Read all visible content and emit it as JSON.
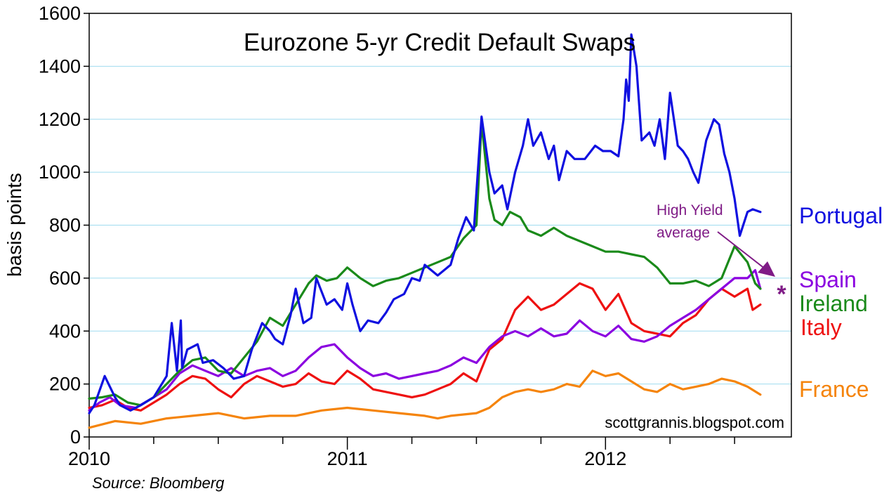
{
  "chart_data": {
    "type": "line",
    "title": "Eurozone 5-yr Credit Default Swaps",
    "ylabel": "basis points",
    "xlabel": "",
    "ylim": [
      0,
      1600
    ],
    "yticks": [
      0,
      200,
      400,
      600,
      800,
      1000,
      1200,
      1400,
      1600
    ],
    "xlim": [
      2010.0,
      2012.72
    ],
    "xticks": [
      2010,
      2011,
      2012
    ],
    "xtick_labels": [
      "2010",
      "2011",
      "2012"
    ],
    "grid": "horizontal",
    "legend": "direct labels at right end of each series",
    "annotation": {
      "text_line1": "High Yield",
      "text_line2": "average",
      "marker": "*",
      "value": 545
    },
    "credit": "scottgrannis.blogspot.com",
    "source": "Source: Bloomberg",
    "series": [
      {
        "name": "Portugal",
        "color": "#1010e0",
        "x": [
          2010.0,
          2010.02,
          2010.06,
          2010.1,
          2010.12,
          2010.16,
          2010.2,
          2010.25,
          2010.3,
          2010.32,
          2010.34,
          2010.355,
          2010.36,
          2010.38,
          2010.42,
          2010.44,
          2010.48,
          2010.52,
          2010.56,
          2010.6,
          2010.63,
          2010.67,
          2010.7,
          2010.72,
          2010.75,
          2010.78,
          2010.8,
          2010.83,
          2010.86,
          2010.88,
          2010.92,
          2010.95,
          2010.98,
          2011.0,
          2011.02,
          2011.05,
          2011.08,
          2011.12,
          2011.15,
          2011.18,
          2011.22,
          2011.25,
          2011.28,
          2011.3,
          2011.35,
          2011.4,
          2011.43,
          2011.46,
          2011.49,
          2011.52,
          2011.55,
          2011.57,
          2011.6,
          2011.62,
          2011.65,
          2011.68,
          2011.7,
          2011.72,
          2011.75,
          2011.78,
          2011.8,
          2011.82,
          2011.85,
          2011.88,
          2011.92,
          2011.96,
          2011.99,
          2012.02,
          2012.05,
          2012.07,
          2012.08,
          2012.09,
          2012.1,
          2012.12,
          2012.14,
          2012.17,
          2012.19,
          2012.21,
          2012.23,
          2012.25,
          2012.28,
          2012.3,
          2012.32,
          2012.34,
          2012.36,
          2012.39,
          2012.42,
          2012.44,
          2012.46,
          2012.48,
          2012.5,
          2012.52,
          2012.55,
          2012.57,
          2012.6
        ],
        "values": [
          90,
          120,
          230,
          150,
          120,
          100,
          120,
          150,
          230,
          430,
          250,
          440,
          260,
          330,
          350,
          280,
          290,
          260,
          220,
          230,
          330,
          430,
          400,
          370,
          350,
          460,
          560,
          430,
          450,
          600,
          500,
          520,
          480,
          580,
          500,
          400,
          440,
          430,
          470,
          520,
          540,
          600,
          590,
          650,
          610,
          650,
          750,
          830,
          780,
          1210,
          1000,
          920,
          950,
          860,
          1000,
          1100,
          1200,
          1100,
          1150,
          1050,
          1100,
          970,
          1080,
          1050,
          1050,
          1100,
          1080,
          1080,
          1060,
          1200,
          1350,
          1270,
          1520,
          1400,
          1120,
          1150,
          1100,
          1200,
          1050,
          1300,
          1100,
          1080,
          1050,
          1000,
          960,
          1120,
          1200,
          1180,
          1070,
          1000,
          900,
          760,
          850,
          860,
          850
        ]
      },
      {
        "name": "Spain",
        "color": "#8b00e0",
        "x": [
          2010.0,
          2010.04,
          2010.08,
          2010.12,
          2010.18,
          2010.25,
          2010.3,
          2010.35,
          2010.4,
          2010.45,
          2010.5,
          2010.55,
          2010.6,
          2010.65,
          2010.7,
          2010.75,
          2010.8,
          2010.85,
          2010.9,
          2010.95,
          2011.0,
          2011.05,
          2011.1,
          2011.15,
          2011.2,
          2011.25,
          2011.3,
          2011.35,
          2011.4,
          2011.45,
          2011.5,
          2011.55,
          2011.6,
          2011.65,
          2011.7,
          2011.75,
          2011.8,
          2011.85,
          2011.9,
          2011.95,
          2012.0,
          2012.05,
          2012.1,
          2012.15,
          2012.2,
          2012.25,
          2012.3,
          2012.35,
          2012.4,
          2012.45,
          2012.5,
          2012.55,
          2012.58,
          2012.6
        ],
        "values": [
          100,
          130,
          150,
          120,
          110,
          150,
          180,
          240,
          270,
          250,
          230,
          260,
          230,
          250,
          260,
          230,
          250,
          300,
          340,
          350,
          300,
          260,
          230,
          240,
          220,
          230,
          240,
          250,
          270,
          300,
          280,
          340,
          380,
          400,
          380,
          410,
          380,
          390,
          440,
          400,
          380,
          420,
          370,
          360,
          380,
          420,
          450,
          480,
          520,
          560,
          600,
          600,
          630,
          560
        ]
      },
      {
        "name": "Ireland",
        "color": "#1a8a1a",
        "x": [
          2010.0,
          2010.05,
          2010.1,
          2010.15,
          2010.2,
          2010.25,
          2010.3,
          2010.35,
          2010.4,
          2010.45,
          2010.5,
          2010.55,
          2010.6,
          2010.65,
          2010.7,
          2010.75,
          2010.8,
          2010.85,
          2010.88,
          2010.92,
          2010.96,
          2011.0,
          2011.05,
          2011.1,
          2011.15,
          2011.2,
          2011.25,
          2011.3,
          2011.35,
          2011.4,
          2011.45,
          2011.5,
          2011.52,
          2011.55,
          2011.57,
          2011.6,
          2011.63,
          2011.67,
          2011.7,
          2011.75,
          2011.8,
          2011.85,
          2011.9,
          2011.95,
          2012.0,
          2012.05,
          2012.1,
          2012.15,
          2012.2,
          2012.25,
          2012.3,
          2012.35,
          2012.4,
          2012.45,
          2012.5,
          2012.55,
          2012.58,
          2012.6
        ],
        "values": [
          145,
          150,
          160,
          130,
          120,
          150,
          200,
          250,
          290,
          300,
          250,
          240,
          300,
          360,
          450,
          420,
          500,
          580,
          610,
          590,
          600,
          640,
          600,
          570,
          590,
          600,
          620,
          640,
          660,
          680,
          750,
          800,
          1190,
          900,
          820,
          800,
          850,
          830,
          780,
          760,
          790,
          760,
          740,
          720,
          700,
          700,
          690,
          680,
          640,
          580,
          580,
          590,
          570,
          600,
          720,
          660,
          580,
          560
        ]
      },
      {
        "name": "Italy",
        "color": "#ee1111",
        "x": [
          2010.0,
          2010.05,
          2010.1,
          2010.15,
          2010.2,
          2010.25,
          2010.3,
          2010.35,
          2010.4,
          2010.45,
          2010.5,
          2010.55,
          2010.6,
          2010.65,
          2010.7,
          2010.75,
          2010.8,
          2010.85,
          2010.9,
          2010.95,
          2011.0,
          2011.05,
          2011.1,
          2011.15,
          2011.2,
          2011.25,
          2011.3,
          2011.35,
          2011.4,
          2011.45,
          2011.5,
          2011.55,
          2011.6,
          2011.65,
          2011.7,
          2011.75,
          2011.8,
          2011.85,
          2011.9,
          2011.95,
          2012.0,
          2012.05,
          2012.1,
          2012.15,
          2012.2,
          2012.25,
          2012.3,
          2012.35,
          2012.4,
          2012.45,
          2012.5,
          2012.55,
          2012.57,
          2012.6
        ],
        "values": [
          110,
          120,
          140,
          110,
          100,
          130,
          160,
          200,
          230,
          220,
          180,
          150,
          200,
          230,
          210,
          190,
          200,
          240,
          210,
          200,
          250,
          220,
          180,
          170,
          160,
          150,
          160,
          180,
          200,
          240,
          210,
          330,
          370,
          480,
          530,
          480,
          500,
          540,
          580,
          560,
          480,
          540,
          430,
          400,
          390,
          380,
          430,
          460,
          520,
          560,
          530,
          560,
          480,
          500
        ]
      },
      {
        "name": "France",
        "color": "#f5840b",
        "x": [
          2010.0,
          2010.1,
          2010.2,
          2010.3,
          2010.4,
          2010.5,
          2010.6,
          2010.7,
          2010.8,
          2010.9,
          2011.0,
          2011.1,
          2011.2,
          2011.3,
          2011.35,
          2011.4,
          2011.5,
          2011.55,
          2011.6,
          2011.65,
          2011.7,
          2011.75,
          2011.8,
          2011.85,
          2011.9,
          2011.95,
          2012.0,
          2012.05,
          2012.1,
          2012.15,
          2012.2,
          2012.25,
          2012.3,
          2012.35,
          2012.4,
          2012.45,
          2012.5,
          2012.55,
          2012.6
        ],
        "values": [
          35,
          60,
          50,
          70,
          80,
          90,
          70,
          80,
          80,
          100,
          110,
          100,
          90,
          80,
          70,
          80,
          90,
          110,
          150,
          170,
          180,
          170,
          180,
          200,
          190,
          250,
          230,
          240,
          210,
          180,
          170,
          200,
          180,
          190,
          200,
          220,
          210,
          190,
          160
        ]
      }
    ]
  }
}
